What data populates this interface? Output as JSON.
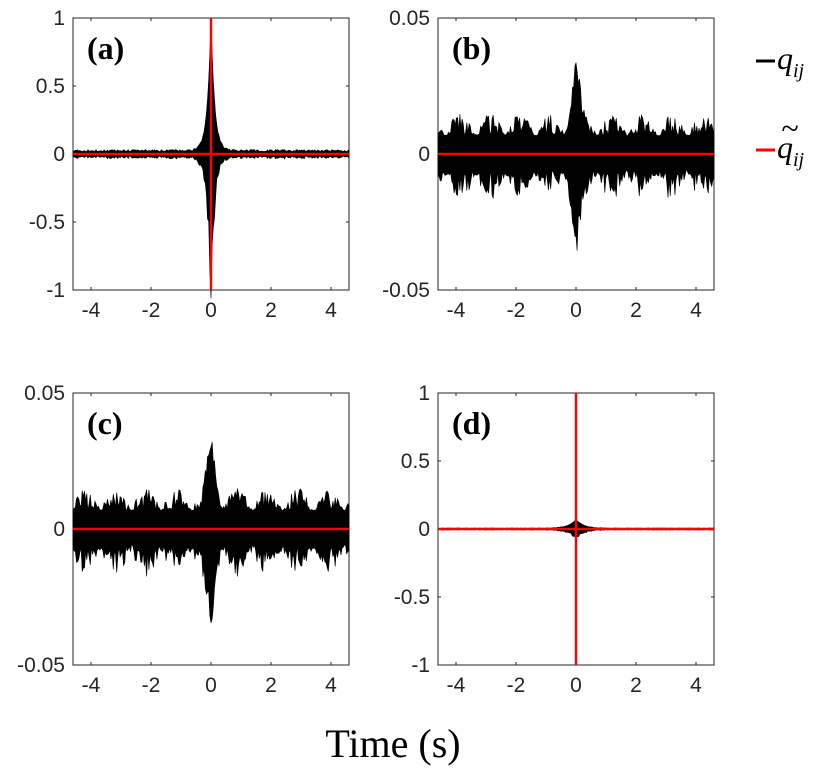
{
  "chart_data": {
    "type": "line",
    "xlabel": "Time (s)",
    "legend": {
      "placement": "right",
      "entries": [
        {
          "name": "q",
          "subscript": "ij",
          "accent": "",
          "color": "#000000"
        },
        {
          "name": "q",
          "subscript": "ij",
          "accent": "~",
          "color": "#ff0000"
        }
      ]
    },
    "panels": [
      {
        "label": "(a)",
        "xlim": [
          -4.6,
          4.6
        ],
        "ylim": [
          -1,
          1
        ],
        "xticks": [
          "-4",
          "-2",
          "0",
          "2",
          "4"
        ],
        "xtick_values": [
          -4,
          -2,
          0,
          2,
          4
        ],
        "yticks": [
          "1",
          "0.5",
          "0",
          "-0.5",
          "-1"
        ],
        "ytick_values": [
          1,
          0.5,
          0,
          -0.5,
          -1
        ],
        "series": [
          {
            "legend_ref": 0,
            "style": "envelope",
            "peak_at_zero": 1.0,
            "decay_time_s": 0.12,
            "base_amplitude": 0.025
          },
          {
            "legend_ref": 1,
            "style": "spike",
            "peak_at_zero": 1.0,
            "baseline": 0
          }
        ]
      },
      {
        "label": "(b)",
        "xlim": [
          -4.6,
          4.6
        ],
        "ylim": [
          -0.05,
          0.05
        ],
        "xticks": [
          "-4",
          "-2",
          "0",
          "2",
          "4"
        ],
        "xtick_values": [
          -4,
          -2,
          0,
          2,
          4
        ],
        "yticks": [
          "0.05",
          "0",
          "-0.05"
        ],
        "ytick_values": [
          0.05,
          0,
          -0.05
        ],
        "series": [
          {
            "legend_ref": 0,
            "style": "envelope",
            "peak_at_zero": 0.035,
            "base_amplitude": 0.015
          },
          {
            "legend_ref": 1,
            "style": "flat",
            "baseline": 0
          }
        ]
      },
      {
        "label": "(c)",
        "xlim": [
          -4.6,
          4.6
        ],
        "ylim": [
          -0.05,
          0.05
        ],
        "xticks": [
          "-4",
          "-2",
          "0",
          "2",
          "4"
        ],
        "xtick_values": [
          -4,
          -2,
          0,
          2,
          4
        ],
        "yticks": [
          "0.05",
          "0",
          "-0.05"
        ],
        "ytick_values": [
          0.05,
          0,
          -0.05
        ],
        "series": [
          {
            "legend_ref": 0,
            "style": "envelope",
            "peak_at_zero": 0.035,
            "base_amplitude": 0.015
          },
          {
            "legend_ref": 1,
            "style": "flat",
            "baseline": 0
          }
        ]
      },
      {
        "label": "(d)",
        "xlim": [
          -4.6,
          4.6
        ],
        "ylim": [
          -1,
          1
        ],
        "xticks": [
          "-4",
          "-2",
          "0",
          "2",
          "4"
        ],
        "xtick_values": [
          -4,
          -2,
          0,
          2,
          4
        ],
        "yticks": [
          "1",
          "0.5",
          "0",
          "-0.5",
          "-1"
        ],
        "ytick_values": [
          1,
          0.5,
          0,
          -0.5,
          -1
        ],
        "series": [
          {
            "legend_ref": 0,
            "style": "envelope",
            "peak_at_zero": 0.07,
            "decay_time_s": 0.25,
            "base_amplitude": 0.006
          },
          {
            "legend_ref": 1,
            "style": "spike",
            "peak_at_zero": 1.0,
            "baseline": 0
          }
        ]
      }
    ]
  }
}
